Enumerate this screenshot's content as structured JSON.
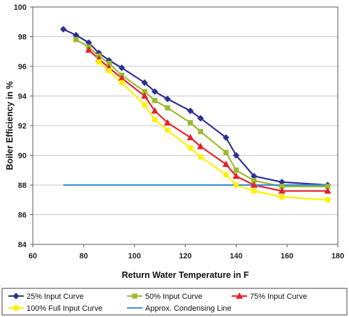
{
  "chart_data": {
    "type": "line",
    "xlabel": "Return Water Temperature in F",
    "ylabel": "Boiler Efficiency in %",
    "xlim": [
      60,
      180
    ],
    "ylim": [
      84,
      100
    ],
    "x_ticks": [
      60,
      80,
      100,
      120,
      140,
      160,
      180
    ],
    "y_ticks": [
      84,
      86,
      88,
      90,
      92,
      94,
      96,
      98,
      100
    ],
    "grid": "horizontal",
    "legend_position": "bottom",
    "series": [
      {
        "name": "25% Input Curve",
        "color": "#2E3192",
        "marker": "diamond",
        "x": [
          72,
          77,
          82,
          86,
          90,
          95,
          104,
          108,
          113,
          122,
          126,
          136,
          140,
          147,
          158,
          176
        ],
        "y": [
          98.5,
          98.1,
          97.6,
          96.9,
          96.4,
          95.9,
          94.9,
          94.3,
          93.8,
          93.0,
          92.5,
          91.2,
          90.0,
          88.6,
          88.2,
          88.0
        ]
      },
      {
        "name": "50% Input Curve",
        "color": "#9BBB30",
        "marker": "square",
        "x": [
          77,
          82,
          86,
          90,
          95,
          104,
          108,
          113,
          122,
          126,
          136,
          140,
          147,
          158,
          176
        ],
        "y": [
          97.8,
          97.3,
          96.7,
          96.2,
          95.4,
          94.3,
          93.7,
          93.2,
          92.2,
          91.6,
          90.2,
          89.0,
          88.3,
          87.9,
          87.9
        ]
      },
      {
        "name": "75% Input Curve",
        "color": "#E8202A",
        "marker": "triangle",
        "x": [
          82,
          86,
          90,
          95,
          104,
          108,
          113,
          122,
          126,
          136,
          140,
          147,
          158,
          176
        ],
        "y": [
          97.1,
          96.5,
          95.9,
          95.2,
          94.0,
          93.0,
          92.2,
          91.2,
          90.6,
          89.4,
          88.6,
          88.0,
          87.6,
          87.6
        ]
      },
      {
        "name": "100% Full Input Curve",
        "color": "#FFF200",
        "marker": "square",
        "x": [
          86,
          90,
          95,
          104,
          108,
          113,
          122,
          126,
          136,
          140,
          147,
          158,
          176
        ],
        "y": [
          96.3,
          95.7,
          94.9,
          93.4,
          92.4,
          91.7,
          90.5,
          89.9,
          88.7,
          88.0,
          87.6,
          87.2,
          87.0
        ]
      },
      {
        "name": "Approx. Condensing Line",
        "color": "#3A8FD0",
        "marker": "none",
        "x": [
          72,
          176
        ],
        "y": [
          88.0,
          88.0
        ]
      }
    ]
  }
}
